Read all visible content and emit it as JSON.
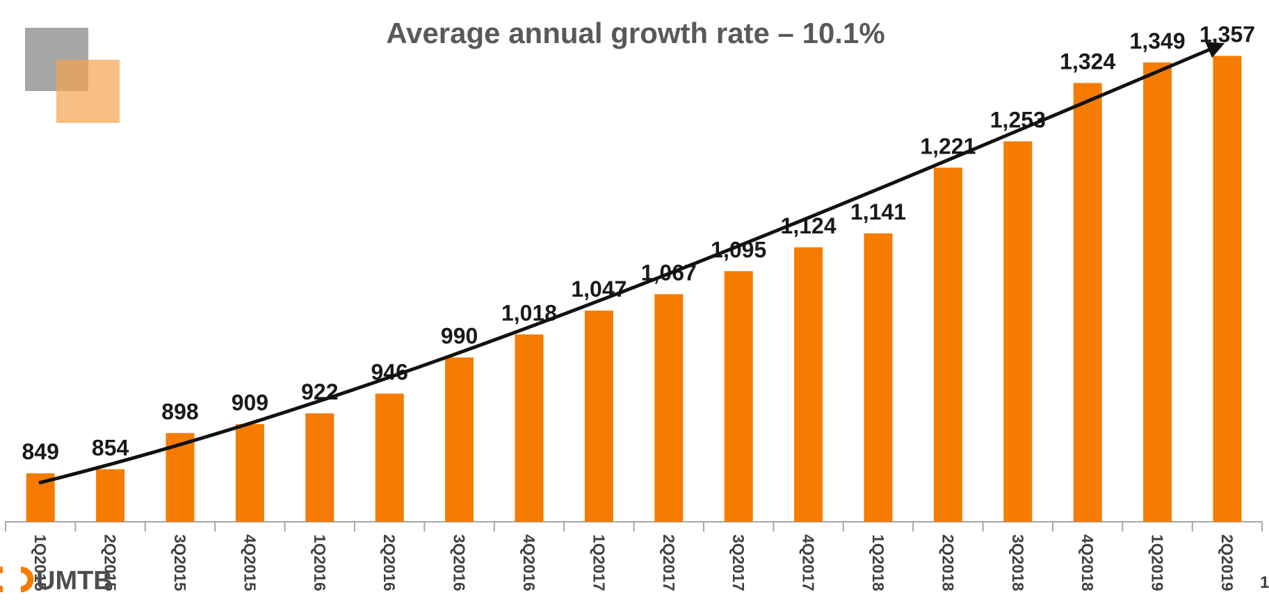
{
  "chart_data": {
    "type": "bar",
    "title": "Average annual growth rate – 10.1%",
    "categories": [
      "1Q2015",
      "2Q2015",
      "3Q2015",
      "4Q2015",
      "1Q2016",
      "2Q2016",
      "3Q2016",
      "4Q2016",
      "1Q2017",
      "2Q2017",
      "3Q2017",
      "4Q2017",
      "1Q2018",
      "2Q2018",
      "3Q2018",
      "4Q2018",
      "1Q2019",
      "2Q2019"
    ],
    "values": [
      849,
      854,
      898,
      909,
      922,
      946,
      990,
      1018,
      1047,
      1067,
      1095,
      1124,
      1141,
      1221,
      1253,
      1324,
      1349,
      1357
    ],
    "value_labels": [
      "849",
      "854",
      "898",
      "909",
      "922",
      "946",
      "990",
      "1,018",
      "1,047",
      "1,067",
      "1,095",
      "1,124",
      "1,141",
      "1,221",
      "1,253",
      "1,324",
      "1,349",
      "1,357"
    ],
    "color": "#f57c00",
    "ylim": [
      790,
      1425
    ]
  },
  "logo": "UMTB",
  "page_number": "1"
}
